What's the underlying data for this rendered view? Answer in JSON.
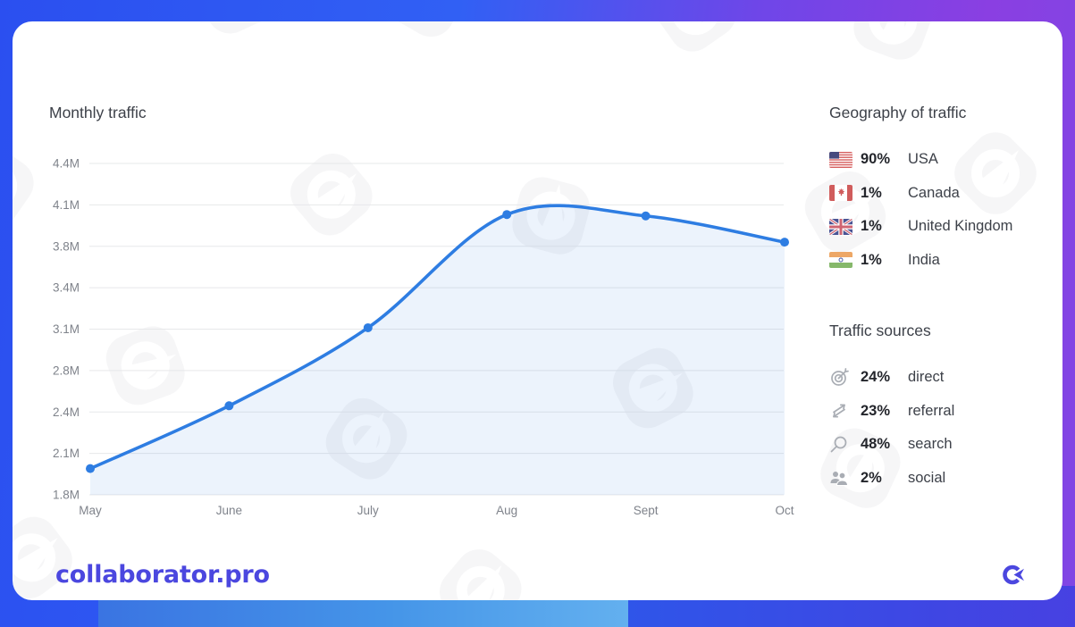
{
  "brand": {
    "wordmark": "collaborator.pro",
    "accent": "#4b47df"
  },
  "geography": {
    "title": "Geography of traffic",
    "items": [
      {
        "flag": "usa",
        "percent": "90%",
        "label": "USA"
      },
      {
        "flag": "canada",
        "percent": "1%",
        "label": "Canada"
      },
      {
        "flag": "uk",
        "percent": "1%",
        "label": "United Kingdom"
      },
      {
        "flag": "india",
        "percent": "1%",
        "label": "India"
      }
    ]
  },
  "sources": {
    "title": "Traffic sources",
    "items": [
      {
        "icon": "target-icon",
        "percent": "24%",
        "label": "direct"
      },
      {
        "icon": "referral-arrows-icon",
        "percent": "23%",
        "label": "referral"
      },
      {
        "icon": "search-icon",
        "percent": "48%",
        "label": "search"
      },
      {
        "icon": "people-icon",
        "percent": "2%",
        "label": "social"
      }
    ]
  },
  "chart_data": {
    "type": "area",
    "title": "Monthly traffic",
    "x": [
      "May",
      "June",
      "July",
      "Aug",
      "Sept",
      "Oct"
    ],
    "values": [
      1.99,
      2.46,
      3.11,
      4.03,
      4.02,
      3.83
    ],
    "unit": "M",
    "ylim": [
      1.8,
      4.4
    ],
    "yticks": [
      1.8,
      2.1,
      2.4,
      2.8,
      3.1,
      3.4,
      3.8,
      4.1,
      4.4
    ],
    "ytick_labels": [
      "1.8M",
      "2.1M",
      "2.4M",
      "2.8M",
      "3.1M",
      "3.4M",
      "3.8M",
      "4.1M",
      "4.4M"
    ],
    "grid": true,
    "legend": "none",
    "line_color": "#2e7de2",
    "point_color": "#2e7de2",
    "fill_color": "rgba(46,125,226,0.09)",
    "grid_color": "#e7e8ea"
  },
  "colors": {
    "frame_blue": "#2b4ff0",
    "frame_purple": "#8a3fe2",
    "frame_bottom_light_blue": "#63b0ef",
    "card_bg": "#ffffff",
    "title_text": "#3d4149",
    "axis_text": "#7f838b",
    "percent_text": "#23252b"
  }
}
